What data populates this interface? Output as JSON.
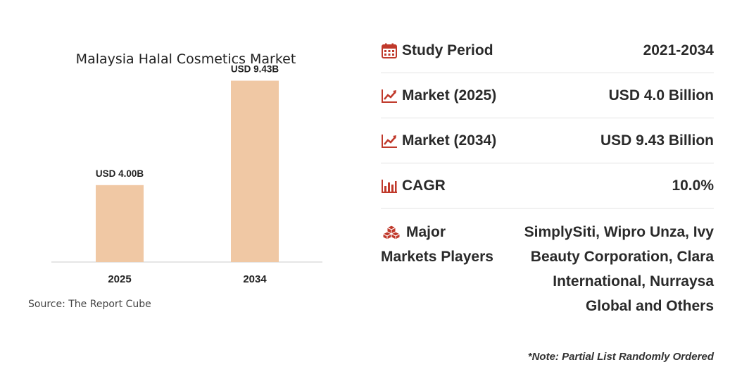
{
  "chart_data": {
    "type": "bar",
    "title": "Malaysia Halal Cosmetics Market",
    "categories": [
      "2025",
      "2034"
    ],
    "values": [
      4.0,
      9.43
    ],
    "data_labels": [
      "USD 4.00B",
      "USD 9.43B"
    ],
    "unit": "USD Billion",
    "ylim": [
      0,
      10
    ],
    "grid": false,
    "legend": "none",
    "bar_color": "#f0c8a4",
    "source": "Source: The Report Cube"
  },
  "stats": {
    "study_period": {
      "label": "Study Period",
      "value": "2021-2034"
    },
    "market_2025": {
      "label": "Market (2025)",
      "value": "USD 4.0 Billion"
    },
    "market_2034": {
      "label": "Market (2034)",
      "value": "USD 9.43 Billion"
    },
    "cagr": {
      "label": "CAGR",
      "value": "10.0%"
    },
    "players": {
      "label_line1": "Major",
      "label_line2": "Markets Players",
      "value": "SimplySiti, Wipro Unza, Ivy Beauty Corporation, Clara International, Nurraysa Global and Others"
    }
  },
  "note": "*Note: Partial List Randomly Ordered",
  "icons": {
    "study_period": "calendar-icon",
    "market_2025": "trend-up-icon",
    "market_2034": "trend-up-icon",
    "cagr": "bar-chart-icon",
    "players": "cubes-icon"
  },
  "colors": {
    "icon": "#c0392b",
    "bar": "#f0c8a4"
  }
}
